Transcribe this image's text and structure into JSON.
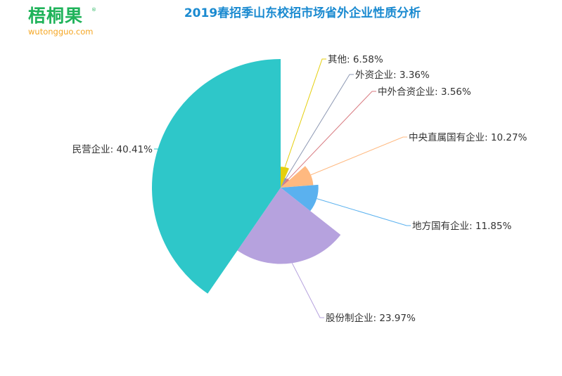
{
  "logo": {
    "cn": "梧桐果",
    "registered": "®",
    "en": "wutongguo.com"
  },
  "chart_data": {
    "type": "pie",
    "rose_type": "radius",
    "title": "2019春招季山东校招市场省外企业性质分析",
    "slices": [
      {
        "label": "其他",
        "value": 6.58,
        "color": "#e5cf0d"
      },
      {
        "label": "外资企业",
        "value": 3.36,
        "color": "#8d98b3"
      },
      {
        "label": "中外合资企业",
        "value": 3.56,
        "color": "#d87a80"
      },
      {
        "label": "中央直属国有企业",
        "value": 10.27,
        "color": "#ffb980"
      },
      {
        "label": "地方国有企业",
        "value": 11.85,
        "color": "#5ab1ef"
      },
      {
        "label": "股份制企业",
        "value": 23.97,
        "color": "#b6a2de"
      },
      {
        "label": "民营企业",
        "value": 40.41,
        "color": "#2ec7c9"
      }
    ]
  }
}
